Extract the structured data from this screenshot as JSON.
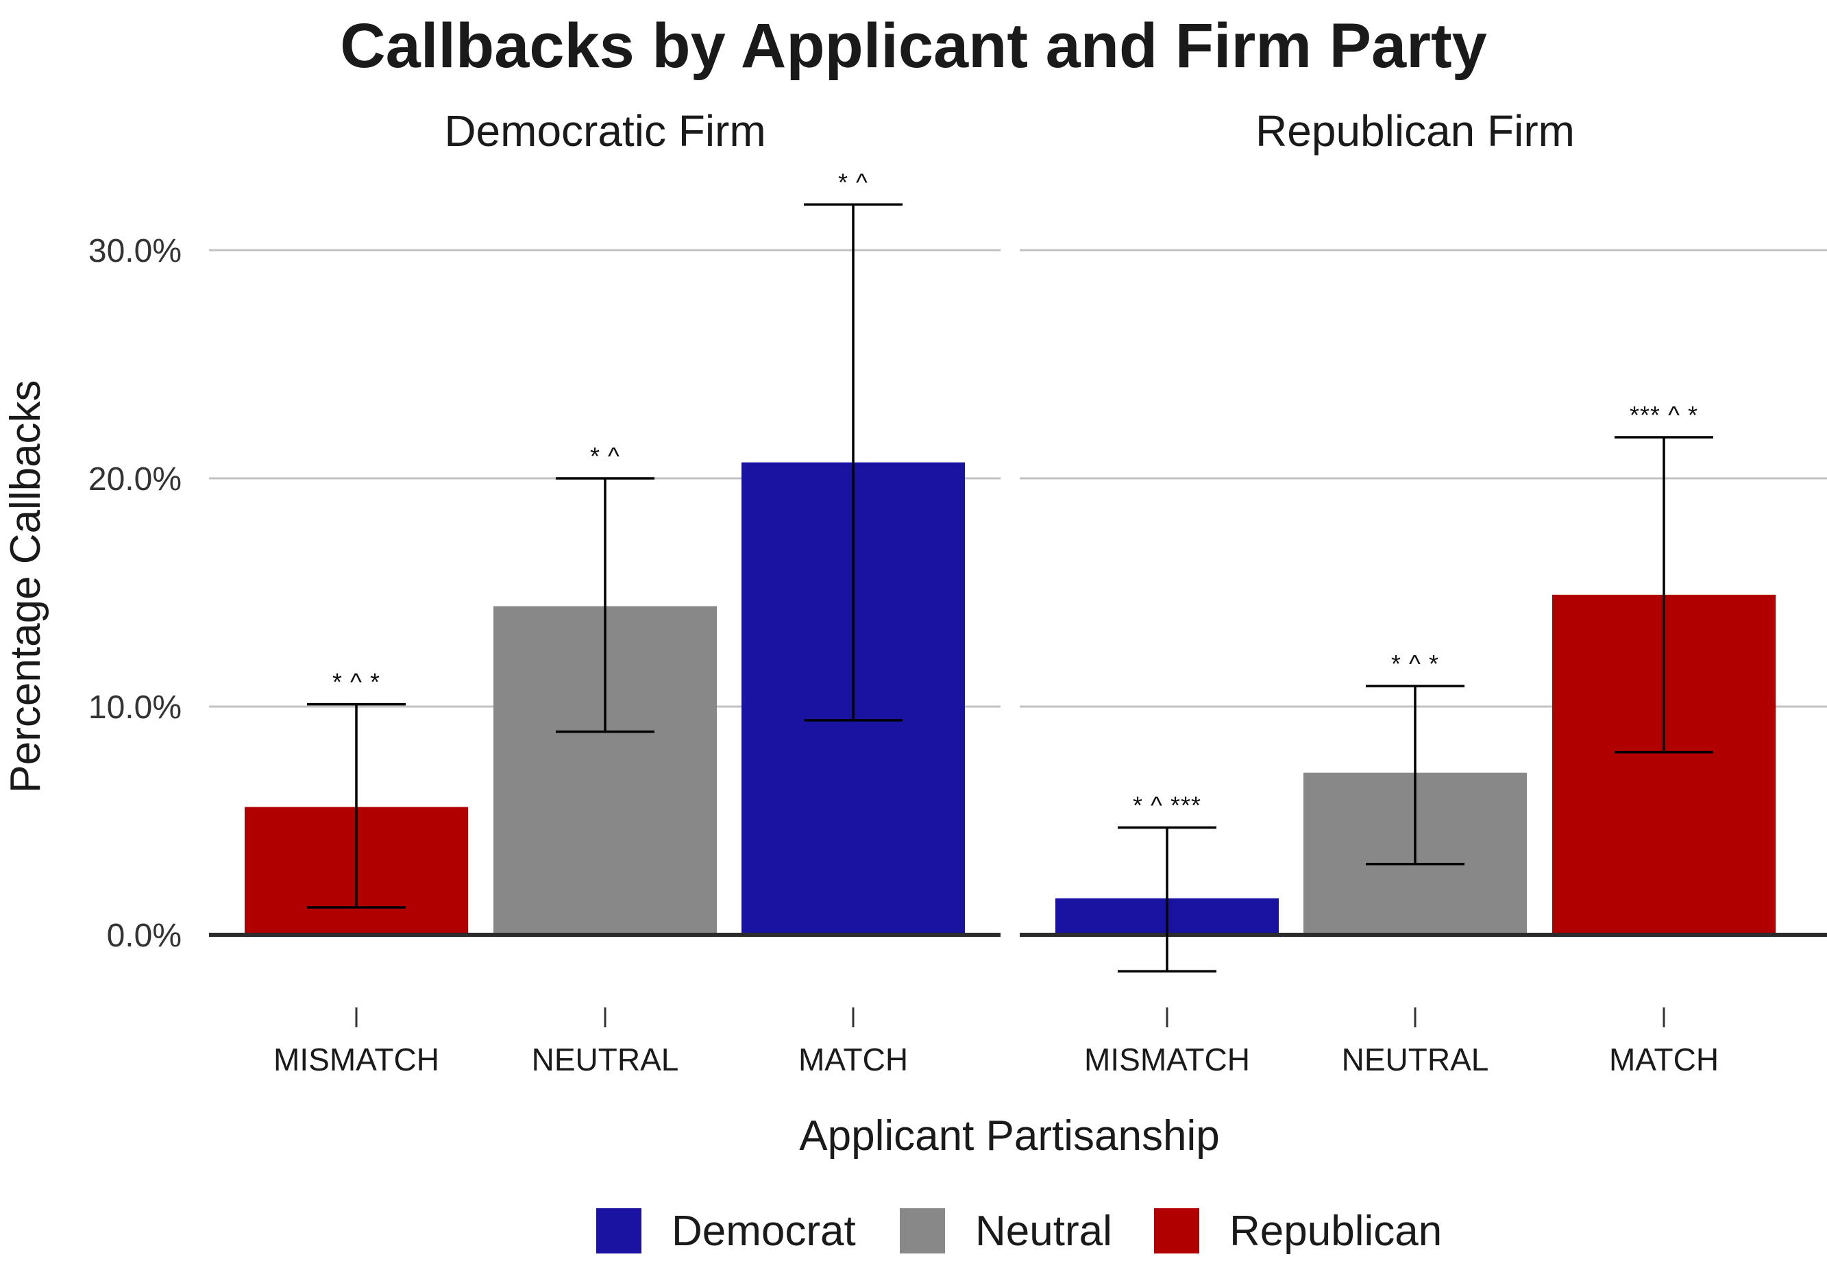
{
  "chart_data": {
    "type": "bar",
    "title": "Callbacks by Applicant and Firm Party",
    "xlabel": "Applicant Partisanship",
    "ylabel": "Percentage Callbacks",
    "ylim": [
      -0.033,
      0.33
    ],
    "yticks": [
      0.0,
      0.1,
      0.2,
      0.3
    ],
    "ytick_labels": [
      "0.0%",
      "10.0%",
      "20.0%",
      "30.0%"
    ],
    "grid": "horizontal major",
    "legend": {
      "position": "bottom",
      "entries": [
        {
          "label": "Democrat",
          "color": "#1a12a0"
        },
        {
          "label": "Neutral",
          "color": "#888888"
        },
        {
          "label": "Republican",
          "color": "#b10000"
        }
      ]
    },
    "categories": [
      "MISMATCH",
      "NEUTRAL",
      "MATCH"
    ],
    "panels": [
      {
        "label": "Democratic Firm",
        "bars": [
          {
            "category": "MISMATCH",
            "value": 0.056,
            "ci_low": 0.012,
            "ci_high": 0.101,
            "party": "Republican",
            "annotation": "* ^ *"
          },
          {
            "category": "NEUTRAL",
            "value": 0.144,
            "ci_low": 0.089,
            "ci_high": 0.2,
            "party": "Neutral",
            "annotation": "* ^"
          },
          {
            "category": "MATCH",
            "value": 0.207,
            "ci_low": 0.094,
            "ci_high": 0.32,
            "party": "Democrat",
            "annotation": "* ^"
          }
        ]
      },
      {
        "label": "Republican Firm",
        "bars": [
          {
            "category": "MISMATCH",
            "value": 0.016,
            "ci_low": -0.016,
            "ci_high": 0.047,
            "party": "Democrat",
            "annotation": "* ^ ***"
          },
          {
            "category": "NEUTRAL",
            "value": 0.071,
            "ci_low": 0.031,
            "ci_high": 0.109,
            "party": "Neutral",
            "annotation": "* ^ *"
          },
          {
            "category": "MATCH",
            "value": 0.149,
            "ci_low": 0.08,
            "ci_high": 0.218,
            "party": "Republican",
            "annotation": "*** ^ *"
          }
        ]
      }
    ]
  }
}
